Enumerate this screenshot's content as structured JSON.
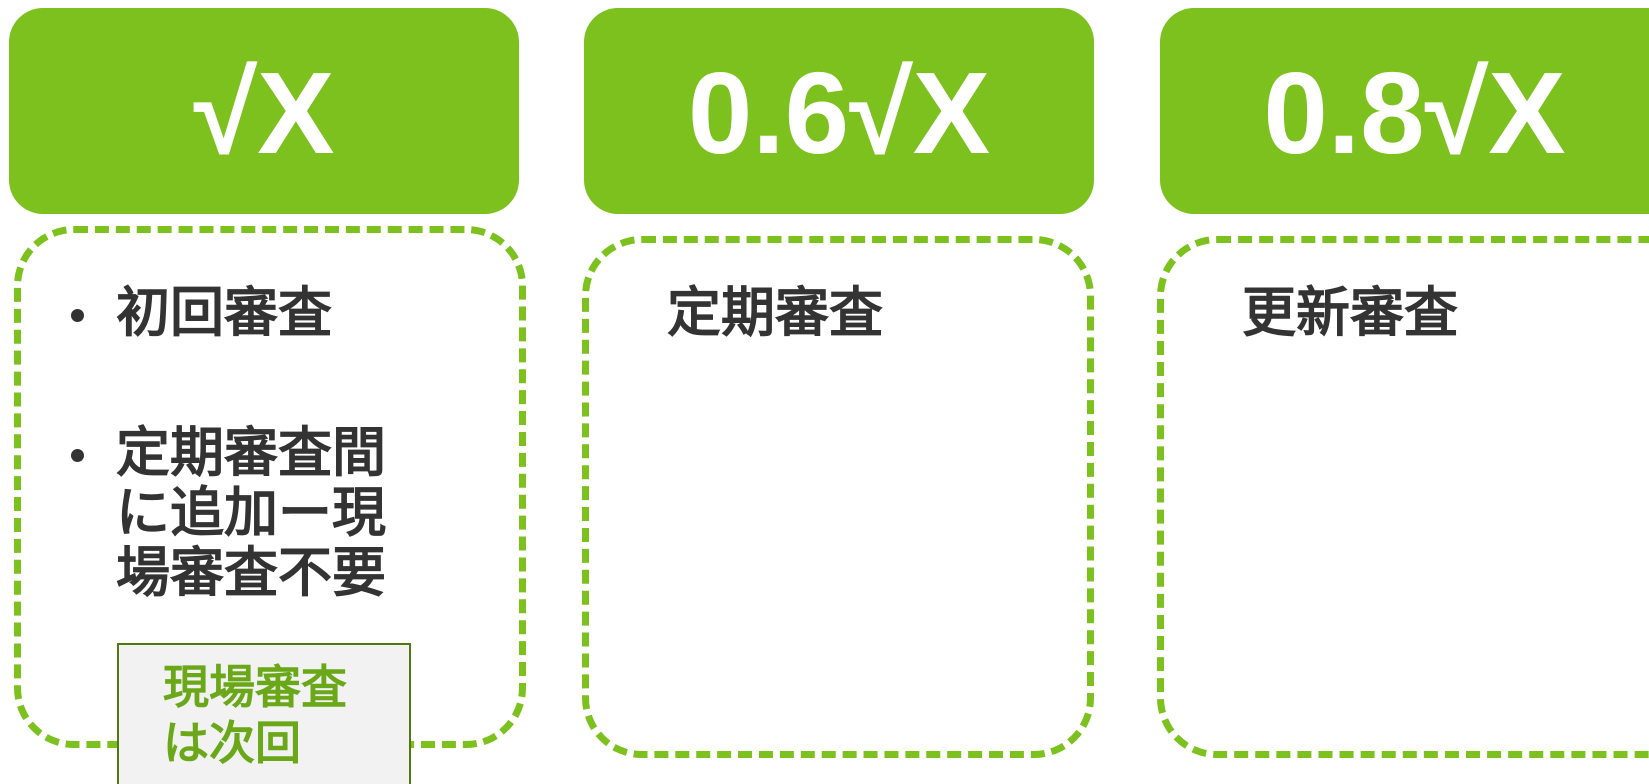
{
  "columns": [
    {
      "formula": "√X",
      "items": [
        "初回審査",
        "定期審査間に追加ー現場審査不要"
      ]
    },
    {
      "formula": "0.6√X",
      "label": "定期審査"
    },
    {
      "formula": "0.8√X",
      "label": "更新審査"
    }
  ],
  "note": {
    "line1": "現場審査",
    "line2": "は次回"
  },
  "colors": {
    "accent_green": "#7cc11d",
    "text_dark": "#333333",
    "note_text": "#6aa81a",
    "note_bg": "#f2f2f2"
  }
}
